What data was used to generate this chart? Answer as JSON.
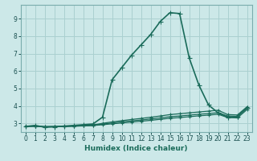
{
  "xlabel": "Humidex (Indice chaleur)",
  "bg_color": "#cce8e8",
  "grid_color": "#aad0d0",
  "line_color": "#1a6b5a",
  "xlim": [
    -0.5,
    23.5
  ],
  "ylim": [
    2.5,
    9.8
  ],
  "xticks": [
    0,
    1,
    2,
    3,
    4,
    5,
    6,
    7,
    8,
    9,
    10,
    11,
    12,
    13,
    14,
    15,
    16,
    17,
    18,
    19,
    20,
    21,
    22,
    23
  ],
  "yticks": [
    3,
    4,
    5,
    6,
    7,
    8,
    9
  ],
  "series": [
    {
      "x": [
        0,
        1,
        2,
        3,
        4,
        5,
        6,
        7,
        8,
        9,
        10,
        11,
        12,
        13,
        14,
        15,
        16,
        17,
        18,
        19,
        20,
        21,
        22,
        23
      ],
      "y": [
        2.82,
        2.88,
        2.78,
        2.8,
        2.84,
        2.88,
        2.92,
        2.96,
        3.35,
        5.5,
        6.2,
        6.9,
        7.5,
        8.1,
        8.85,
        9.35,
        9.3,
        6.75,
        5.2,
        4.05,
        3.6,
        3.35,
        3.38,
        3.9
      ],
      "marker": "+",
      "markersize": 4,
      "linewidth": 1.2
    },
    {
      "x": [
        0,
        1,
        2,
        3,
        4,
        5,
        6,
        7,
        8,
        9,
        10,
        11,
        12,
        13,
        14,
        15,
        16,
        17,
        18,
        19,
        20,
        21,
        22,
        23
      ],
      "y": [
        2.82,
        2.83,
        2.82,
        2.82,
        2.83,
        2.85,
        2.87,
        2.9,
        3.0,
        3.08,
        3.15,
        3.22,
        3.28,
        3.35,
        3.42,
        3.5,
        3.55,
        3.6,
        3.65,
        3.7,
        3.75,
        3.5,
        3.48,
        3.95
      ],
      "marker": "+",
      "markersize": 3,
      "linewidth": 0.9
    },
    {
      "x": [
        0,
        1,
        2,
        3,
        4,
        5,
        6,
        7,
        8,
        9,
        10,
        11,
        12,
        13,
        14,
        15,
        16,
        17,
        18,
        19,
        20,
        21,
        22,
        23
      ],
      "y": [
        2.82,
        2.83,
        2.8,
        2.81,
        2.82,
        2.84,
        2.86,
        2.88,
        2.95,
        3.02,
        3.08,
        3.14,
        3.19,
        3.25,
        3.31,
        3.38,
        3.42,
        3.47,
        3.52,
        3.56,
        3.61,
        3.42,
        3.4,
        3.88
      ],
      "marker": "+",
      "markersize": 3,
      "linewidth": 0.9
    },
    {
      "x": [
        0,
        1,
        2,
        3,
        4,
        5,
        6,
        7,
        8,
        9,
        10,
        11,
        12,
        13,
        14,
        15,
        16,
        17,
        18,
        19,
        20,
        21,
        22,
        23
      ],
      "y": [
        2.82,
        2.83,
        2.79,
        2.8,
        2.81,
        2.83,
        2.85,
        2.87,
        2.92,
        2.97,
        3.02,
        3.07,
        3.12,
        3.17,
        3.23,
        3.29,
        3.33,
        3.38,
        3.43,
        3.47,
        3.52,
        3.33,
        3.31,
        3.79
      ],
      "marker": "+",
      "markersize": 3,
      "linewidth": 0.9
    }
  ]
}
